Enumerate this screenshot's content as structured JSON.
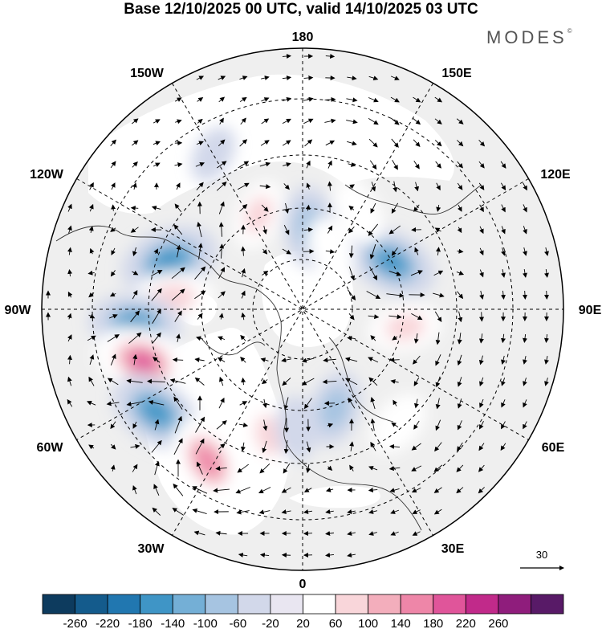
{
  "title": "Base 12/10/2025 00 UTC, valid 14/10/2025 03 UTC",
  "brand": "MODES",
  "brand_mark": "©",
  "longitude_labels": {
    "top": "180",
    "top_left": "150W",
    "top_right": "150E",
    "upper_left": "120W",
    "upper_right": "120E",
    "left": "90W",
    "right": "90E",
    "lower_left": "60W",
    "lower_right": "60E",
    "bottom_left": "30W",
    "bottom_right": "30E",
    "bottom": "0"
  },
  "reference_vector": {
    "value": "30"
  },
  "colorbar": {
    "ticks": [
      "-260",
      "-220",
      "-180",
      "-140",
      "-100",
      "-60",
      "-20",
      "20",
      "60",
      "100",
      "140",
      "180",
      "220",
      "260"
    ],
    "colors": [
      "#0d3b5e",
      "#145b8c",
      "#2177b0",
      "#3f95c6",
      "#74afd6",
      "#a6c4e1",
      "#d2d8ea",
      "#e9e6f1",
      "#ffffff",
      "#f9d6da",
      "#f3aebc",
      "#ee86a8",
      "#e0559a",
      "#c12a8a",
      "#8f1d7c",
      "#581a67"
    ]
  },
  "map": {
    "anomaly_cells": [
      {
        "lat": 52,
        "lon": -110,
        "value": -180
      },
      {
        "lat": 55,
        "lon": -95,
        "value": 120
      },
      {
        "lat": 45,
        "lon": -85,
        "value": -160
      },
      {
        "lat": 45,
        "lon": -72,
        "value": 180
      },
      {
        "lat": 42,
        "lon": -55,
        "value": -170
      },
      {
        "lat": 42,
        "lon": -32,
        "value": 160
      },
      {
        "lat": 55,
        "lon": -15,
        "value": 90
      },
      {
        "lat": 58,
        "lon": -3,
        "value": -60
      },
      {
        "lat": 62,
        "lon": 18,
        "value": -100
      },
      {
        "lat": 50,
        "lon": 40,
        "value": 70
      },
      {
        "lat": 62,
        "lon": 80,
        "value": 90
      },
      {
        "lat": 63,
        "lon": 118,
        "value": -160
      },
      {
        "lat": 60,
        "lon": 150,
        "value": 70
      },
      {
        "lat": 45,
        "lon": 165,
        "value": 60
      },
      {
        "lat": 68,
        "lon": 175,
        "value": -120
      },
      {
        "lat": 62,
        "lon": -155,
        "value": 80
      },
      {
        "lat": 72,
        "lon": 155,
        "value": 60
      },
      {
        "lat": 42,
        "lon": -150,
        "value": -40
      }
    ]
  }
}
